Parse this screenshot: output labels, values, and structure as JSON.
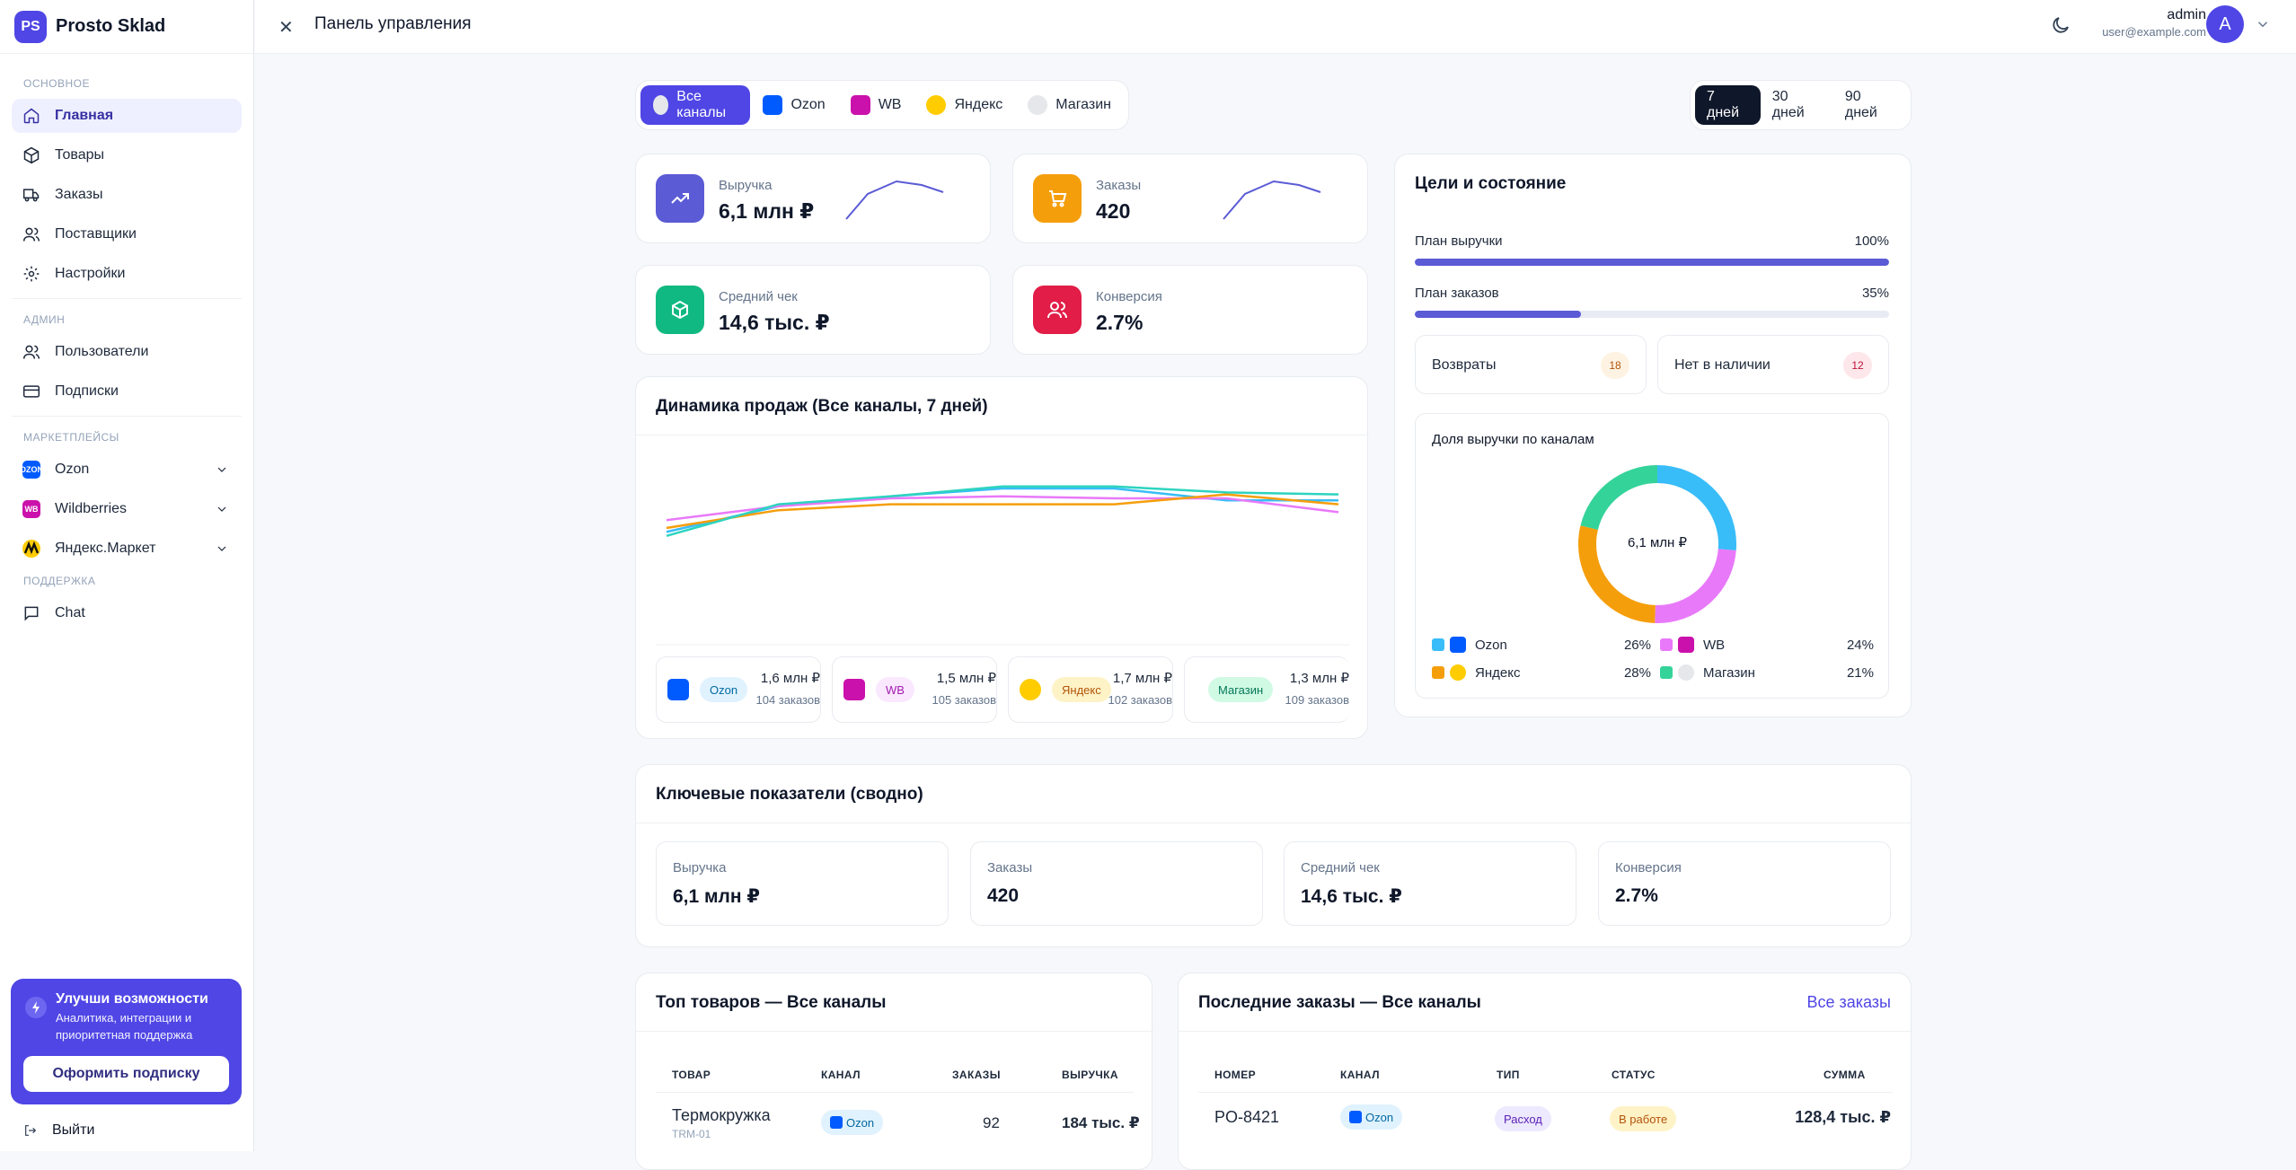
{
  "brand": {
    "logo": "PS",
    "name": "Prosto Sklad"
  },
  "sidebar": {
    "sections": [
      {
        "label": "ОСНОВНОЕ"
      },
      {
        "label": "АДМИН"
      },
      {
        "label": "МАРКЕТПЛЕЙСЫ"
      },
      {
        "label": "ПОДДЕРЖКА"
      }
    ],
    "main_items": [
      {
        "label": "Главная",
        "icon": "home-icon",
        "active": true
      },
      {
        "label": "Товары",
        "icon": "box-icon"
      },
      {
        "label": "Заказы",
        "icon": "truck-icon"
      },
      {
        "label": "Поставщики",
        "icon": "users-icon"
      },
      {
        "label": "Настройки",
        "icon": "gear-icon"
      }
    ],
    "admin_items": [
      {
        "label": "Пользователи",
        "icon": "users-icon"
      },
      {
        "label": "Подписки",
        "icon": "credit-card-icon"
      }
    ],
    "marketplaces": [
      {
        "label": "Ozon",
        "badge": "OZON",
        "color": "#005bff"
      },
      {
        "label": "Wildberries",
        "badge": "WB",
        "color": "#cb11ab"
      },
      {
        "label": "Яндекс.Маркет",
        "badge": "",
        "color": "#fc0"
      }
    ],
    "support_items": [
      {
        "label": "Chat",
        "icon": "chat-icon"
      }
    ],
    "promo": {
      "title": "Улучши возможности",
      "desc": "Аналитика, интеграции и приоритетная поддержка",
      "button": "Оформить подписку"
    },
    "logout": "Выйти"
  },
  "topbar": {
    "title": "Панель управления",
    "user_name": "admin",
    "user_email": "user@example.com",
    "avatar_letter": "A"
  },
  "filters": {
    "channels": [
      "Все каналы",
      "Ozon",
      "WB",
      "Яндекс",
      "Магазин"
    ],
    "periods": [
      "7 дней",
      "30 дней",
      "90 дней"
    ]
  },
  "kpis": {
    "revenue": {
      "label": "Выручка",
      "value": "6,1 млн ₽"
    },
    "orders": {
      "label": "Заказы",
      "value": "420"
    },
    "avg_check": {
      "label": "Средний чек",
      "value": "14,6 тыс. ₽"
    },
    "conversion": {
      "label": "Конверсия",
      "value": "2.7%"
    }
  },
  "goals": {
    "title": "Цели и состояние",
    "revenue_plan": {
      "label": "План выручки",
      "pct": "100%",
      "fraction": 1.0
    },
    "orders_plan": {
      "label": "План заказов",
      "pct": "35%",
      "fraction": 0.35
    },
    "returns": {
      "label": "Возвраты",
      "count": "18"
    },
    "out_of_stock": {
      "label": "Нет в наличии",
      "count": "12"
    },
    "share": {
      "title": "Доля выручки по каналам",
      "center": "6,1 млн ₽",
      "items": [
        {
          "name": "Ozon",
          "pct": "26%",
          "value": 26,
          "color": "#38bdf8"
        },
        {
          "name": "WB",
          "pct": "24%",
          "value": 24,
          "color": "#e879f9"
        },
        {
          "name": "Яндекс",
          "pct": "28%",
          "value": 28,
          "color": "#f59e0b"
        },
        {
          "name": "Магазин",
          "pct": "21%",
          "value": 21,
          "color": "#34d399"
        }
      ]
    }
  },
  "sales": {
    "title": "Динамика продаж (Все каналы, 7 дней)",
    "channels": [
      {
        "name": "Ozon",
        "revenue": "1,6 млн ₽",
        "orders": "104 заказов"
      },
      {
        "name": "WB",
        "revenue": "1,5 млн ₽",
        "orders": "105 заказов"
      },
      {
        "name": "Яндекс",
        "revenue": "1,7 млн ₽",
        "orders": "102 заказов"
      },
      {
        "name": "Магазин",
        "revenue": "1,3 млн ₽",
        "orders": "109 заказов"
      }
    ]
  },
  "chart_data": {
    "type": "line",
    "x": [
      1,
      2,
      3,
      4,
      5,
      6,
      7
    ],
    "ylim": [
      0,
      1
    ],
    "series": [
      {
        "values": [
          0.58,
          0.71,
          0.76,
          0.8,
          0.8,
          0.74,
          0.74
        ],
        "color": "#38bdf8"
      },
      {
        "values": [
          0.64,
          0.71,
          0.75,
          0.76,
          0.75,
          0.75,
          0.68
        ],
        "color": "#e879f9"
      },
      {
        "values": [
          0.6,
          0.69,
          0.72,
          0.72,
          0.72,
          0.77,
          0.72
        ],
        "color": "#f59e0b"
      },
      {
        "values": [
          0.56,
          0.72,
          0.76,
          0.81,
          0.81,
          0.78,
          0.77
        ],
        "color": "#2dd4bf"
      }
    ]
  },
  "key_metrics": {
    "title": "Ключевые показатели (сводно)",
    "items": [
      {
        "label": "Выручка",
        "value": "6,1 млн ₽"
      },
      {
        "label": "Заказы",
        "value": "420"
      },
      {
        "label": "Средний чек",
        "value": "14,6 тыс. ₽"
      },
      {
        "label": "Конверсия",
        "value": "2.7%"
      }
    ]
  },
  "top_products": {
    "title": "Топ товаров — Все каналы",
    "columns": [
      "ТОВАР",
      "КАНАЛ",
      "ЗАКАЗЫ",
      "ВЫРУЧКА"
    ],
    "rows": [
      {
        "name": "Термокружка",
        "sku": "TRM-01",
        "channel": "Ozon",
        "orders": "92",
        "revenue": "184 тыс. ₽"
      }
    ]
  },
  "recent_orders": {
    "title": "Последние заказы — Все каналы",
    "link": "Все заказы",
    "columns": [
      "НОМЕР",
      "КАНАЛ",
      "ТИП",
      "СТАТУС",
      "СУММА"
    ],
    "rows": [
      {
        "number": "PO-8421",
        "channel": "Ozon",
        "type": "Расход",
        "status": "В работе",
        "sum": "128,4 тыс. ₽"
      }
    ]
  }
}
